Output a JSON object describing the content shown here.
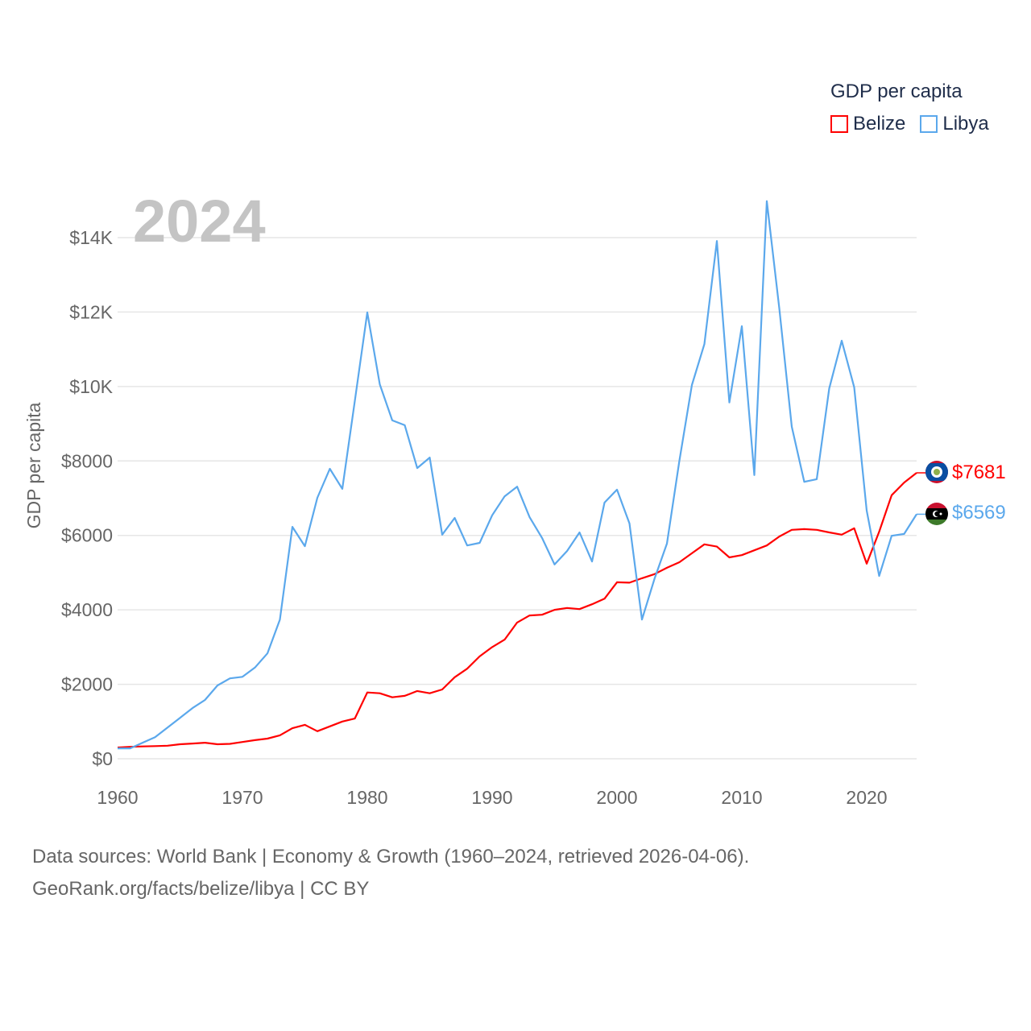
{
  "legend": {
    "title": "GDP per capita",
    "items": [
      {
        "label": "Belize",
        "color": "#ff0000"
      },
      {
        "label": "Libya",
        "color": "#5ba8ec"
      }
    ]
  },
  "year_label": "2024",
  "end_labels": {
    "belize": "$7681",
    "libya": "$6569"
  },
  "footer": {
    "line1": "Data sources: World Bank | Economy & Growth (1960–2024, retrieved 2026-04-06).",
    "line2": "GeoRank.org/facts/belize/libya | CC BY"
  },
  "chart_data": {
    "type": "line",
    "title": "GDP per capita",
    "xlabel": "",
    "ylabel": "GDP per capita",
    "xlim": [
      1960,
      2024
    ],
    "ylim": [
      0,
      15000
    ],
    "grid": true,
    "legend_position": "top-right",
    "x_ticks": [
      1960,
      1970,
      1980,
      1990,
      2000,
      2010,
      2020
    ],
    "x_tick_labels": [
      "1960",
      "1970",
      "1980",
      "1990",
      "2000",
      "2010",
      "2020"
    ],
    "y_ticks": [
      0,
      2000,
      4000,
      6000,
      8000,
      10000,
      12000,
      14000
    ],
    "y_tick_labels": [
      "$0",
      "$2000",
      "$4000",
      "$6000",
      "$8000",
      "$10K",
      "$12K",
      "$14K"
    ],
    "x_start": 1960,
    "series": [
      {
        "name": "Belize",
        "color": "#ff0000",
        "values": [
          300,
          320,
          330,
          340,
          350,
          390,
          410,
          430,
          390,
          400,
          450,
          500,
          540,
          630,
          820,
          910,
          740,
          870,
          1000,
          1080,
          1780,
          1760,
          1650,
          1690,
          1820,
          1760,
          1860,
          2190,
          2420,
          2750,
          3000,
          3200,
          3660,
          3850,
          3870,
          4000,
          4050,
          4020,
          4150,
          4300,
          4740,
          4730,
          4850,
          4960,
          5130,
          5280,
          5520,
          5760,
          5700,
          5410,
          5470,
          5600,
          5730,
          5970,
          6150,
          6170,
          6150,
          6080,
          6020,
          6190,
          5240,
          6100,
          7080,
          7420,
          7681
        ]
      },
      {
        "name": "Libya",
        "color": "#5ba8ec",
        "values": [
          280,
          280,
          430,
          580,
          840,
          1100,
          1360,
          1580,
          1970,
          2160,
          2200,
          2450,
          2830,
          3740,
          6230,
          5710,
          7010,
          7790,
          7250,
          9610,
          11990,
          10060,
          9090,
          8960,
          7810,
          8090,
          6020,
          6470,
          5730,
          5800,
          6540,
          7050,
          7310,
          6490,
          5930,
          5220,
          5580,
          6080,
          5300,
          6880,
          7230,
          6320,
          3740,
          4830,
          5780,
          8010,
          10040,
          11140,
          13910,
          9570,
          11620,
          7620,
          14980,
          12100,
          8920,
          7440,
          7510,
          9950,
          11230,
          9980,
          6670,
          4910,
          5990,
          6040,
          6569
        ]
      }
    ]
  }
}
